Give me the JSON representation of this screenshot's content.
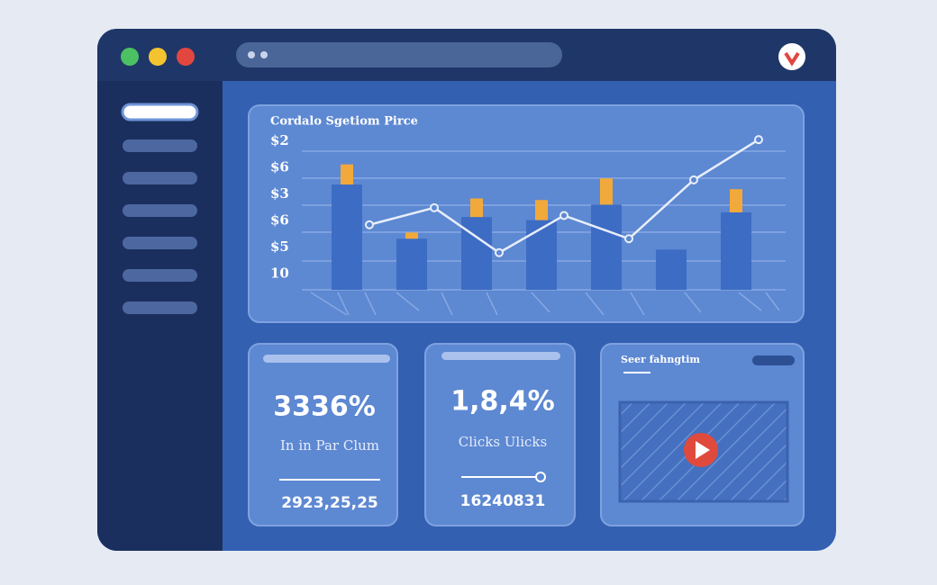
{
  "chart_data": {
    "type": "bar",
    "title": "Cordalo Sgetiom Pirce",
    "y_axis_labels": [
      "$2",
      "$6",
      "$3",
      "$6",
      "$5",
      "10"
    ],
    "ylim": [
      0,
      100
    ],
    "series": [
      {
        "name": "bars",
        "color": "#3d6cc4",
        "values": [
          68,
          33,
          47,
          45,
          55,
          26,
          50
        ]
      },
      {
        "name": "caps",
        "color": "#f2a93b",
        "values": [
          13,
          4,
          12,
          13,
          17,
          null,
          15
        ]
      },
      {
        "name": "line",
        "color": "#e8eefa",
        "values": [
          42,
          53,
          24,
          48,
          33,
          71,
          97
        ]
      }
    ]
  },
  "cards": [
    {
      "value": "3336%",
      "label": "In in Par Clum",
      "footer": "2923,25,25"
    },
    {
      "value": "1,8,4%",
      "label": "Clicks Ulicks",
      "footer": "16240831"
    }
  ],
  "video_card": {
    "title": "Seer fahngtim"
  }
}
